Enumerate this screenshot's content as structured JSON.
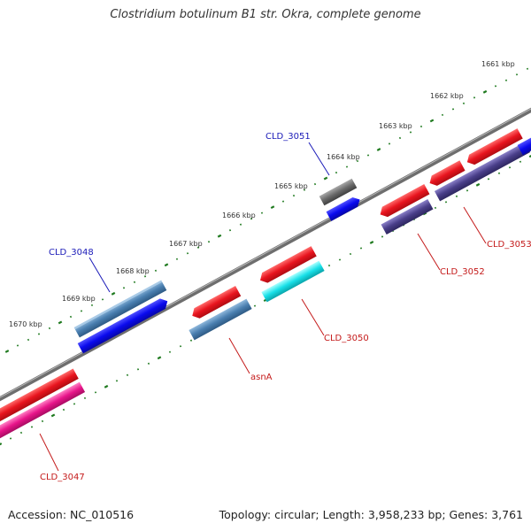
{
  "title": "Clostridium botulinum B1 str. Okra, complete genome",
  "footer": {
    "accession": "Accession: NC_010516",
    "summary": "Topology: circular; Length: 3,958,233 bp; Genes: 3,761"
  },
  "kbp_labels": [
    "1661 kbp",
    "1662 kbp",
    "1663 kbp",
    "1664 kbp",
    "1665 kbp",
    "1666 kbp",
    "1667 kbp",
    "1668 kbp",
    "1669 kbp",
    "1670 kbp"
  ],
  "gene_labels": {
    "CLD_3051": "CLD_3051",
    "CLD_3048": "CLD_3048",
    "CLD_3053": "CLD_3053",
    "CLD_3052": "CLD_3052",
    "CLD_3050": "CLD_3050",
    "asnA": "asnA",
    "CLD_3047": "CLD_3047"
  },
  "colors": {
    "backbone": "#7a7a7a",
    "tick": "#1f7a1f",
    "gene_red": "#e8141e",
    "cds_blue": "#0a0aee",
    "steel": "#4a7fb0",
    "slate": "#4a3f8a",
    "cyan": "#18e0e8",
    "magenta": "#e8148a",
    "gray": "#6a6a6a",
    "label_blue": "#1a1ab8",
    "label_red": "#c41a1a"
  }
}
